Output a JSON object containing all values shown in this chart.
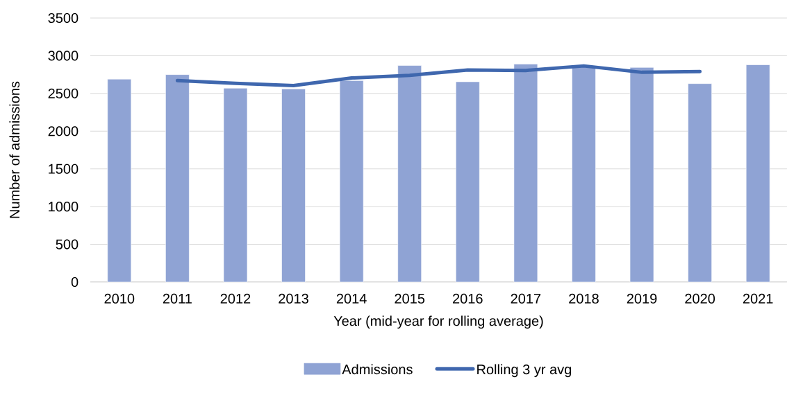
{
  "chart_data": {
    "type": "bar",
    "xlabel": "Year (mid-year for rolling average)",
    "ylabel": "Number of admissions",
    "categories": [
      "2010",
      "2011",
      "2012",
      "2013",
      "2014",
      "2015",
      "2016",
      "2017",
      "2018",
      "2019",
      "2020",
      "2021"
    ],
    "series": [
      {
        "name": "Admissions",
        "color": "#8fa3d4",
        "values": [
          2690,
          2750,
          2570,
          2560,
          2670,
          2870,
          2655,
          2890,
          2860,
          2845,
          2630,
          2880
        ]
      },
      {
        "name": "Rolling 3 yr avg",
        "type": "line",
        "color": "#3f67ae",
        "values": [
          null,
          2670,
          2635,
          2605,
          2705,
          2740,
          2810,
          2805,
          2865,
          2780,
          2790,
          null
        ]
      }
    ],
    "ylim": [
      0,
      3500
    ],
    "yticks": [
      0,
      500,
      1000,
      1500,
      2000,
      2500,
      3000,
      3500
    ],
    "grid": "y",
    "legend": "bottom"
  }
}
